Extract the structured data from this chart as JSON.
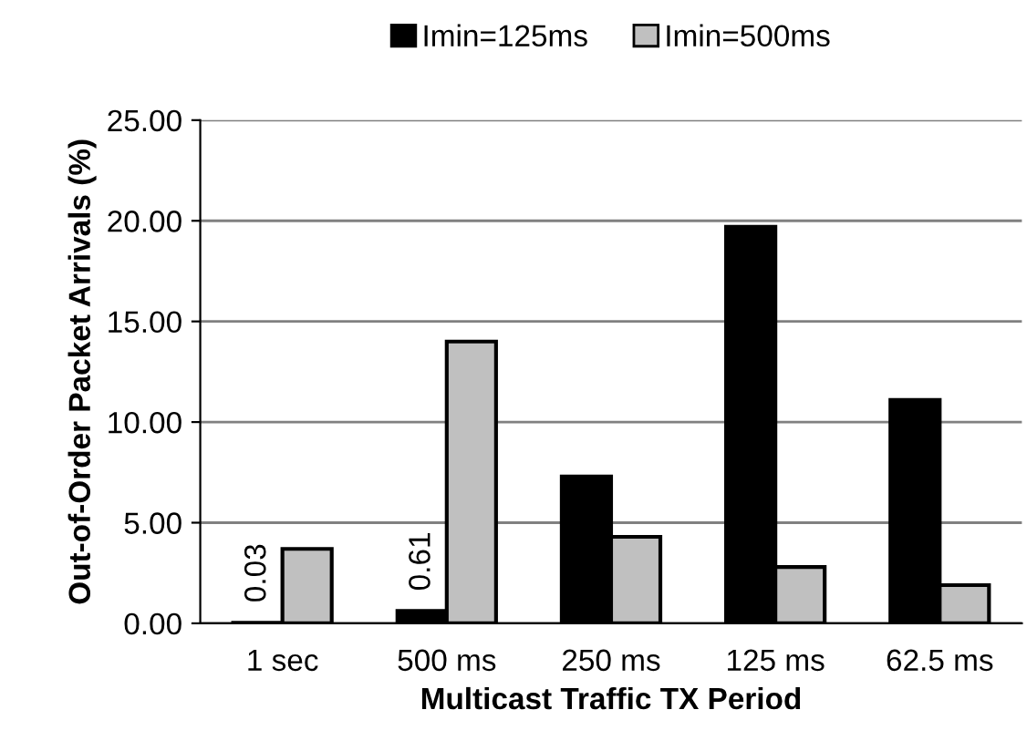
{
  "chart_data": {
    "type": "bar",
    "xlabel": "Multicast Traffic TX Period",
    "ylabel": "Out-of-Order Packet Arrivals (%)",
    "categories": [
      "1 sec",
      "500 ms",
      "250 ms",
      "125 ms",
      "62.5 ms"
    ],
    "series": [
      {
        "name": "Imin=125ms",
        "color": "#000000",
        "values": [
          0.03,
          0.61,
          7.3,
          19.7,
          11.1
        ],
        "value_labels": [
          "0.03",
          "0.61",
          null,
          null,
          null
        ]
      },
      {
        "name": "Imin=500ms",
        "color": "#c0c0c0",
        "values": [
          3.7,
          14.0,
          4.3,
          2.8,
          1.9
        ]
      }
    ],
    "ylim": [
      0,
      25
    ],
    "yticks": [
      {
        "value": 0,
        "label": "0.00"
      },
      {
        "value": 5,
        "label": "5.00"
      },
      {
        "value": 10,
        "label": "10.00"
      },
      {
        "value": 15,
        "label": "15.00"
      },
      {
        "value": 20,
        "label": "20.00"
      },
      {
        "value": 25,
        "label": "25.00"
      }
    ],
    "grid": "y",
    "legend": "top"
  }
}
